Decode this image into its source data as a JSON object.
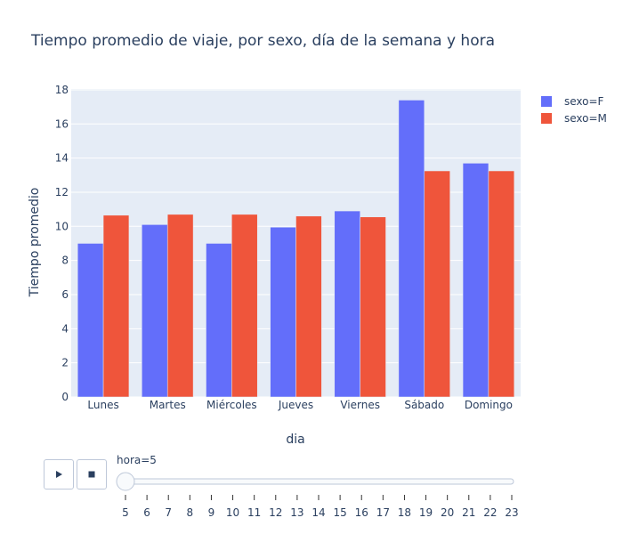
{
  "colors": {
    "F": "#636efa",
    "M": "#ef553b",
    "plot_bg": "#e5ecf6",
    "grid": "#ffffff"
  },
  "chart_data": {
    "type": "bar",
    "title": "Tiempo promedio de viaje, por sexo, día de la semana y hora",
    "xlabel": "dia",
    "ylabel": "Tiempo promedio",
    "categories": [
      "Lunes",
      "Martes",
      "Miércoles",
      "Jueves",
      "Viernes",
      "Sábado",
      "Domingo"
    ],
    "series": [
      {
        "name": "sexo=F",
        "values": [
          9.0,
          10.1,
          9.0,
          9.95,
          10.9,
          17.4,
          13.7
        ]
      },
      {
        "name": "sexo=M",
        "values": [
          10.65,
          10.7,
          10.7,
          10.6,
          10.55,
          13.25,
          13.25
        ]
      }
    ],
    "ylim": [
      0,
      18
    ],
    "yticks": [
      0,
      2,
      4,
      6,
      8,
      10,
      12,
      14,
      16,
      18
    ],
    "legend_position": "top-right",
    "grid": true
  },
  "slider": {
    "label_prefix": "hora=",
    "current_value": "5",
    "ticks": [
      "5",
      "6",
      "7",
      "8",
      "9",
      "10",
      "11",
      "12",
      "13",
      "14",
      "15",
      "16",
      "17",
      "18",
      "19",
      "20",
      "21",
      "22",
      "23"
    ]
  },
  "controls": {
    "play_icon": "play-icon",
    "stop_icon": "stop-icon"
  }
}
